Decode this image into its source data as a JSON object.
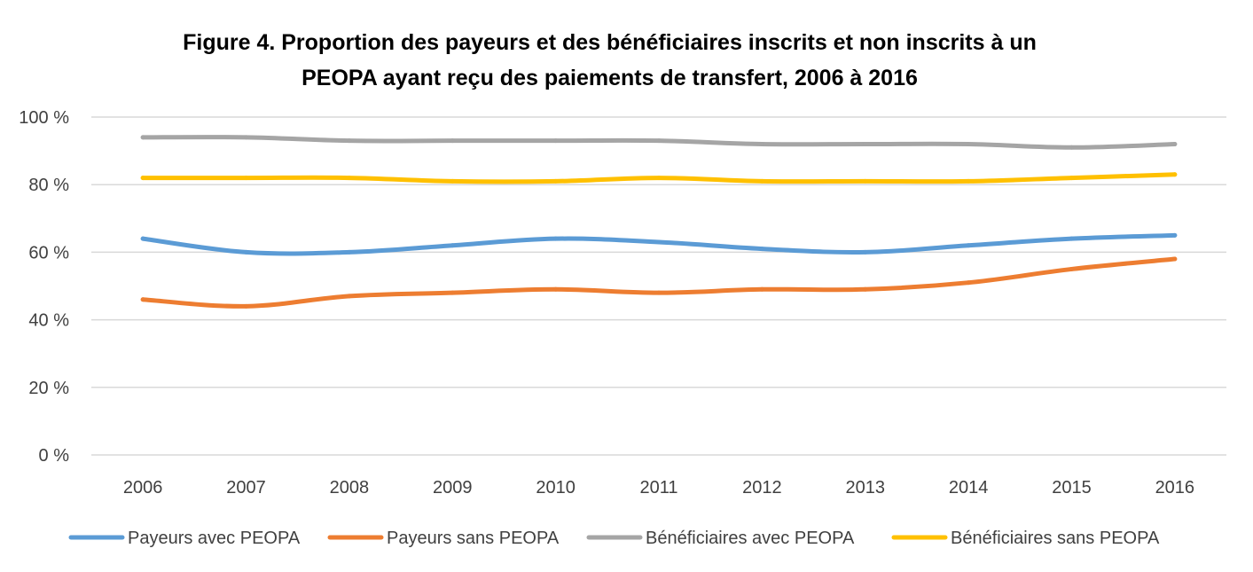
{
  "chart_data": {
    "type": "line",
    "title_lines": [
      "Figure 4. Proportion des payeurs et des bénéficiaires inscrits et non inscrits à un",
      "PEOPA ayant reçu des paiements de transfert, 2006 à 2016"
    ],
    "xlabel": "",
    "ylabel": "",
    "x": [
      "2006",
      "2007",
      "2008",
      "2009",
      "2010",
      "2011",
      "2012",
      "2013",
      "2014",
      "2015",
      "2016"
    ],
    "ylim": [
      0,
      100
    ],
    "y_ticks": [
      0,
      20,
      40,
      60,
      80,
      100
    ],
    "y_tick_labels": [
      "0 %",
      "20 %",
      "40 %",
      "60 %",
      "80 %",
      "100 %"
    ],
    "grid": true,
    "legend_position": "bottom",
    "series": [
      {
        "name": "Payeurs avec PEOPA",
        "color": "#5B9BD5",
        "values": [
          64,
          60,
          60,
          62,
          64,
          63,
          61,
          60,
          62,
          64,
          65
        ]
      },
      {
        "name": "Payeurs sans PEOPA",
        "color": "#ED7D31",
        "values": [
          46,
          44,
          47,
          48,
          49,
          48,
          49,
          49,
          51,
          55,
          58
        ]
      },
      {
        "name": "Bénéficiaires avec PEOPA",
        "color": "#A5A5A5",
        "values": [
          94,
          94,
          93,
          93,
          93,
          93,
          92,
          92,
          92,
          91,
          92
        ]
      },
      {
        "name": "Bénéficiaires sans PEOPA",
        "color": "#FFC000",
        "values": [
          82,
          82,
          82,
          81,
          81,
          82,
          81,
          81,
          81,
          82,
          83
        ]
      }
    ]
  }
}
